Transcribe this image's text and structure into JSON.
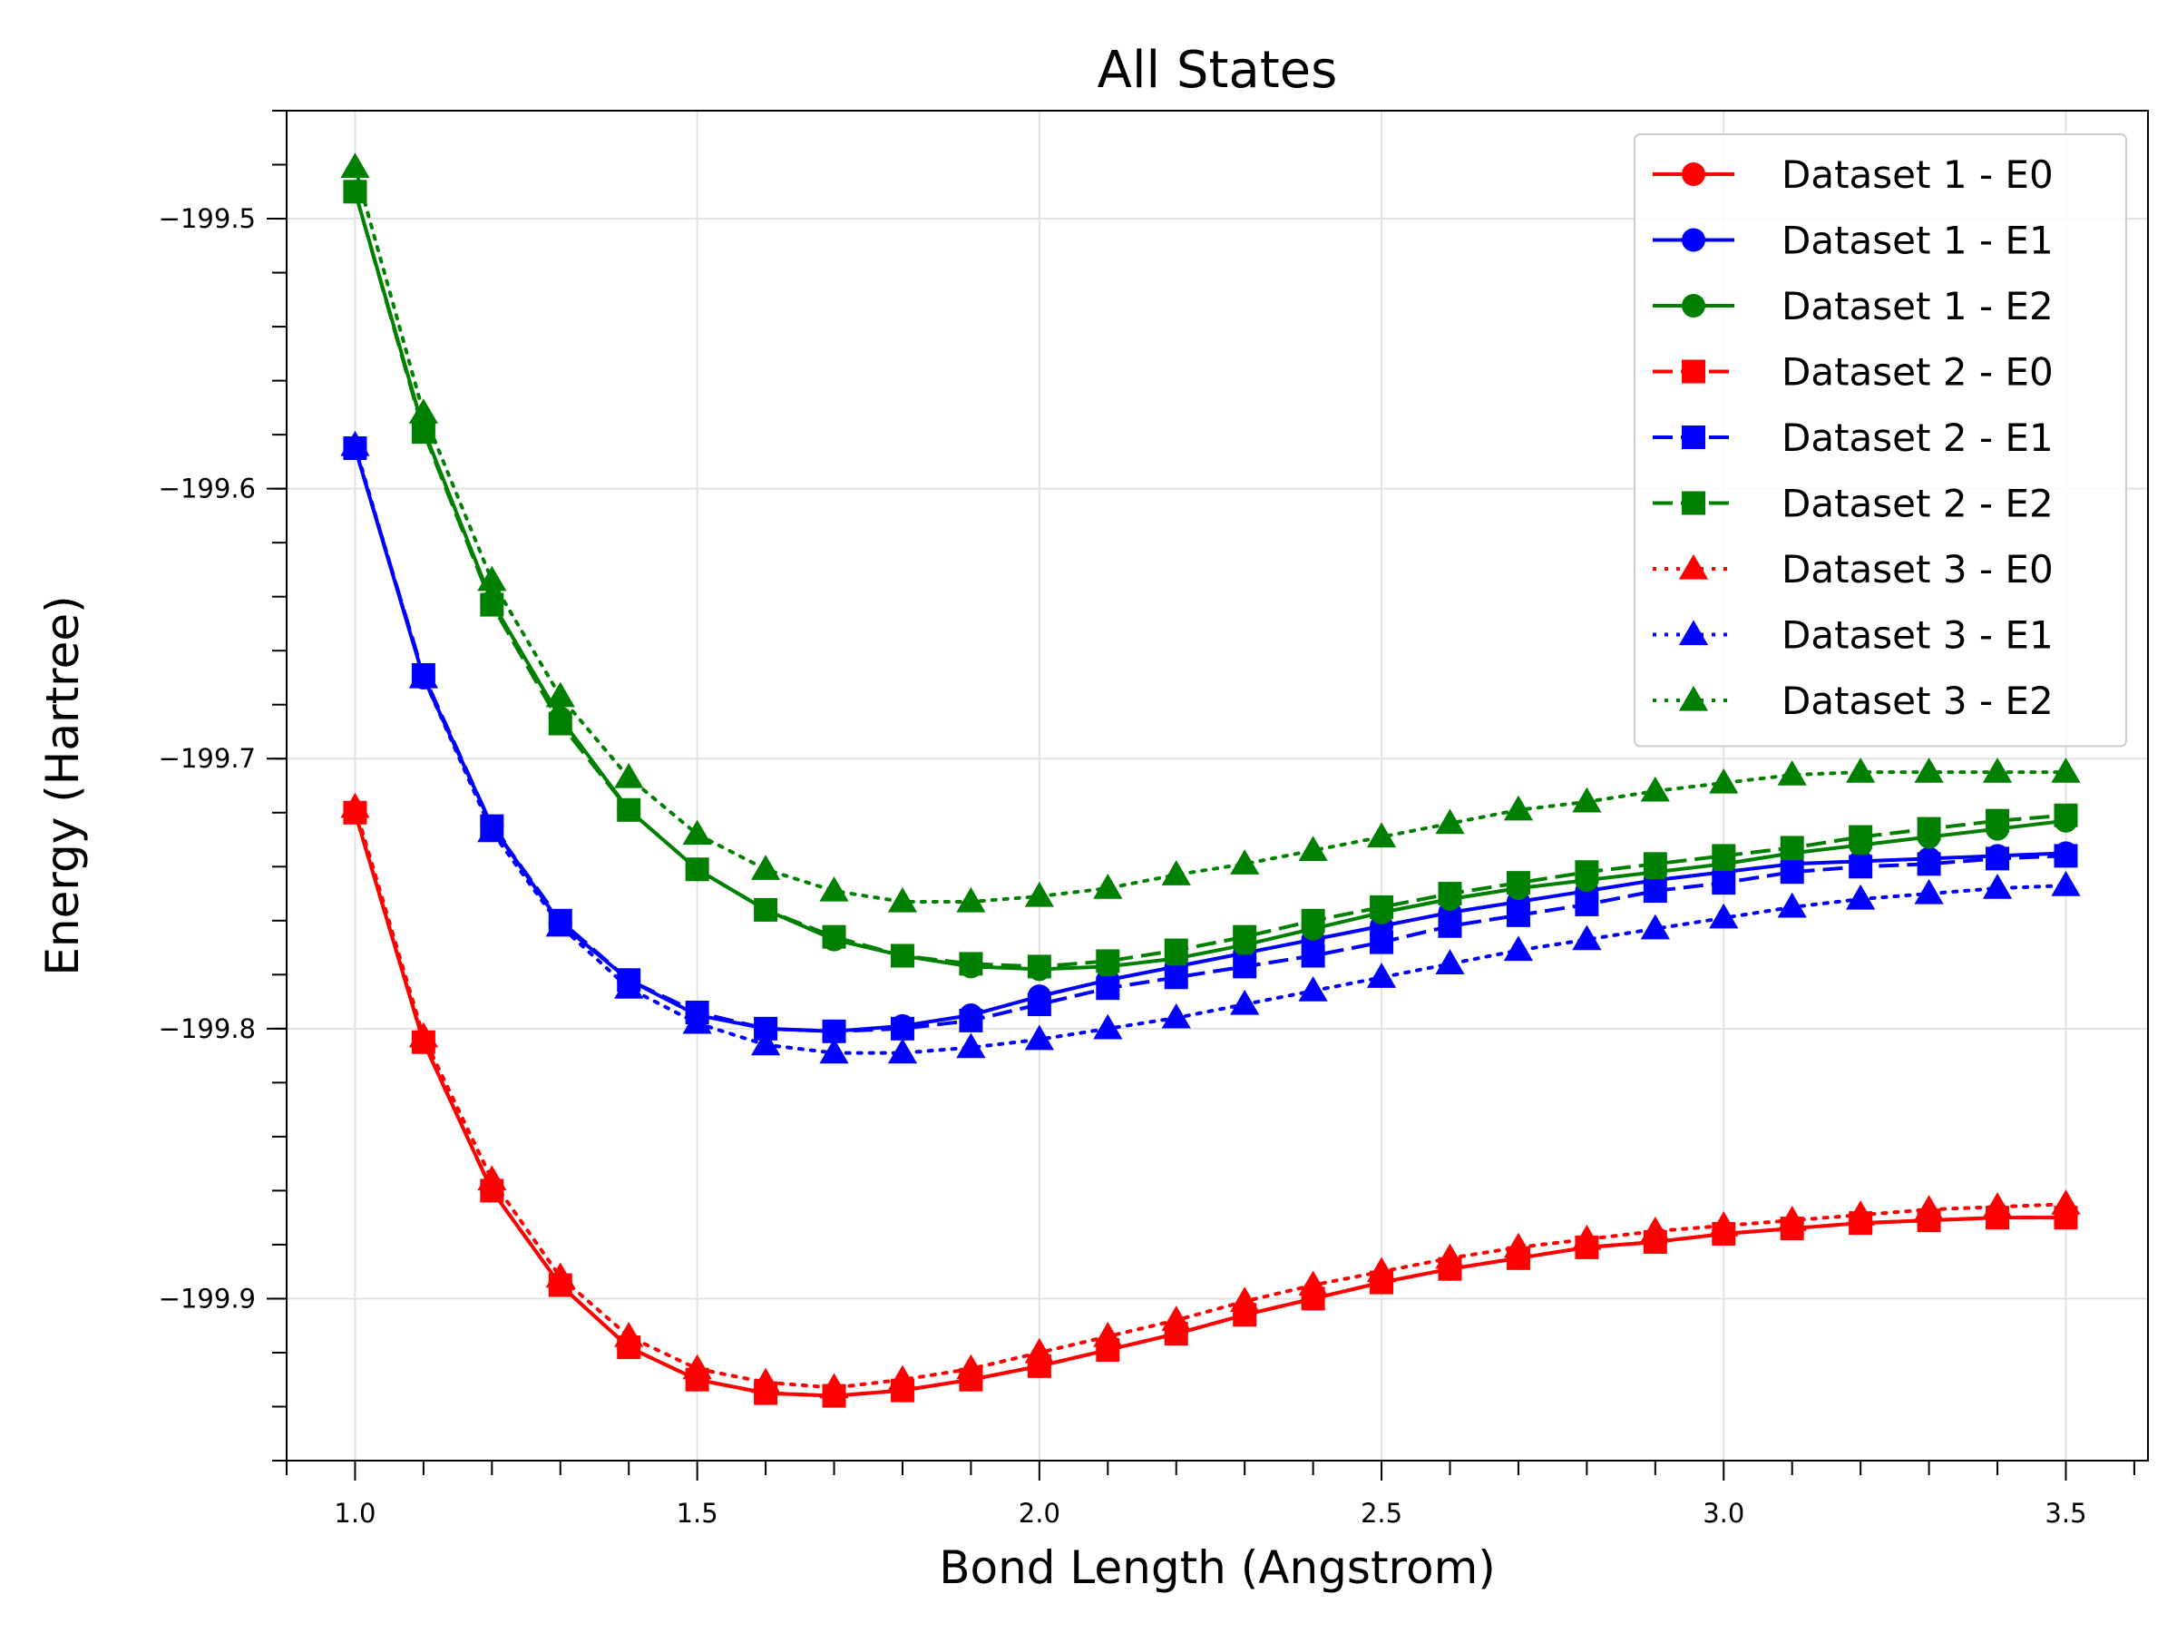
{
  "chart_data": {
    "type": "line",
    "title": "All States",
    "xlabel": "Bond Length (Angstrom)",
    "ylabel": "Energy (Hartree)",
    "xlim": [
      0.9,
      3.62
    ],
    "ylim": [
      -199.96,
      -199.46
    ],
    "x_ticks": [
      "1.0",
      "1.5",
      "2.0",
      "2.5",
      "3.0",
      "3.5"
    ],
    "y_ticks": [
      "−199.5",
      "−199.6",
      "−199.7",
      "−199.8",
      "−199.9"
    ],
    "grid": true,
    "legend_position": "top-right",
    "x": [
      1.0,
      1.1,
      1.2,
      1.3,
      1.4,
      1.5,
      1.6,
      1.7,
      1.8,
      1.9,
      2.0,
      2.1,
      2.2,
      2.3,
      2.4,
      2.5,
      2.6,
      2.7,
      2.8,
      2.9,
      3.0,
      3.1,
      3.2,
      3.3,
      3.4,
      3.5
    ],
    "series": [
      {
        "name": "Dataset 1 - E0",
        "color": "#ff0000",
        "line_style": "solid",
        "marker": "circle",
        "values": [
          -199.72,
          -199.805,
          -199.86,
          -199.895,
          -199.918,
          -199.93,
          -199.935,
          -199.936,
          -199.934,
          -199.93,
          -199.925,
          -199.919,
          -199.913,
          -199.906,
          -199.9,
          -199.894,
          -199.889,
          -199.885,
          -199.881,
          -199.879,
          -199.876,
          -199.874,
          -199.872,
          -199.871,
          -199.87,
          -199.87
        ]
      },
      {
        "name": "Dataset 1 - E1",
        "color": "#0000ff",
        "line_style": "solid",
        "marker": "circle",
        "values": [
          -199.585,
          -199.67,
          -199.725,
          -199.761,
          -199.782,
          -199.795,
          -199.8,
          -199.801,
          -199.799,
          -199.795,
          -199.788,
          -199.782,
          -199.777,
          -199.772,
          -199.767,
          -199.762,
          -199.757,
          -199.753,
          -199.749,
          -199.745,
          -199.742,
          -199.739,
          -199.738,
          -199.737,
          -199.736,
          -199.735
        ]
      },
      {
        "name": "Dataset 1 - E2",
        "color": "#008000",
        "line_style": "solid",
        "marker": "circle",
        "values": [
          -199.49,
          -199.578,
          -199.642,
          -199.685,
          -199.719,
          -199.741,
          -199.756,
          -199.767,
          -199.773,
          -199.777,
          -199.778,
          -199.777,
          -199.774,
          -199.769,
          -199.763,
          -199.757,
          -199.752,
          -199.748,
          -199.745,
          -199.742,
          -199.739,
          -199.735,
          -199.732,
          -199.729,
          -199.726,
          -199.723
        ]
      },
      {
        "name": "Dataset 2 - E0",
        "color": "#ff0000",
        "line_style": "dashed",
        "marker": "square",
        "values": [
          -199.72,
          -199.805,
          -199.86,
          -199.895,
          -199.918,
          -199.93,
          -199.935,
          -199.936,
          -199.934,
          -199.93,
          -199.925,
          -199.919,
          -199.913,
          -199.906,
          -199.9,
          -199.894,
          -199.889,
          -199.885,
          -199.881,
          -199.879,
          -199.876,
          -199.874,
          -199.872,
          -199.871,
          -199.87,
          -199.87
        ]
      },
      {
        "name": "Dataset 2 - E1",
        "color": "#0000ff",
        "line_style": "dashed",
        "marker": "square",
        "values": [
          -199.585,
          -199.669,
          -199.725,
          -199.76,
          -199.782,
          -199.794,
          -199.8,
          -199.801,
          -199.8,
          -199.797,
          -199.791,
          -199.785,
          -199.781,
          -199.777,
          -199.773,
          -199.768,
          -199.762,
          -199.758,
          -199.754,
          -199.749,
          -199.746,
          -199.742,
          -199.74,
          -199.739,
          -199.737,
          -199.736
        ]
      },
      {
        "name": "Dataset 2 - E2",
        "color": "#008000",
        "line_style": "dashed",
        "marker": "square",
        "values": [
          -199.49,
          -199.579,
          -199.643,
          -199.687,
          -199.719,
          -199.741,
          -199.756,
          -199.766,
          -199.773,
          -199.776,
          -199.777,
          -199.775,
          -199.771,
          -199.766,
          -199.76,
          -199.755,
          -199.75,
          -199.746,
          -199.742,
          -199.739,
          -199.736,
          -199.733,
          -199.729,
          -199.726,
          -199.723,
          -199.721
        ]
      },
      {
        "name": "Dataset 3 - E0",
        "color": "#ff0000",
        "line_style": "dotted",
        "marker": "triangle",
        "values": [
          -199.718,
          -199.803,
          -199.856,
          -199.892,
          -199.914,
          -199.926,
          -199.931,
          -199.933,
          -199.93,
          -199.926,
          -199.92,
          -199.914,
          -199.908,
          -199.901,
          -199.895,
          -199.89,
          -199.885,
          -199.881,
          -199.878,
          -199.875,
          -199.873,
          -199.871,
          -199.869,
          -199.867,
          -199.866,
          -199.865
        ]
      },
      {
        "name": "Dataset 3 - E1",
        "color": "#0000ff",
        "line_style": "dotted",
        "marker": "triangle",
        "values": [
          -199.584,
          -199.67,
          -199.727,
          -199.762,
          -199.785,
          -199.798,
          -199.806,
          -199.809,
          -199.809,
          -199.807,
          -199.804,
          -199.8,
          -199.796,
          -199.791,
          -199.786,
          -199.781,
          -199.776,
          -199.771,
          -199.767,
          -199.763,
          -199.759,
          -199.755,
          -199.752,
          -199.75,
          -199.748,
          -199.747
        ]
      },
      {
        "name": "Dataset 3 - E2",
        "color": "#008000",
        "line_style": "dotted",
        "marker": "triangle",
        "values": [
          -199.481,
          -199.572,
          -199.634,
          -199.677,
          -199.707,
          -199.728,
          -199.741,
          -199.749,
          -199.753,
          -199.753,
          -199.751,
          -199.748,
          -199.743,
          -199.739,
          -199.734,
          -199.729,
          -199.724,
          -199.719,
          -199.716,
          -199.712,
          -199.709,
          -199.706,
          -199.705,
          -199.705,
          -199.705,
          -199.705
        ]
      }
    ]
  }
}
